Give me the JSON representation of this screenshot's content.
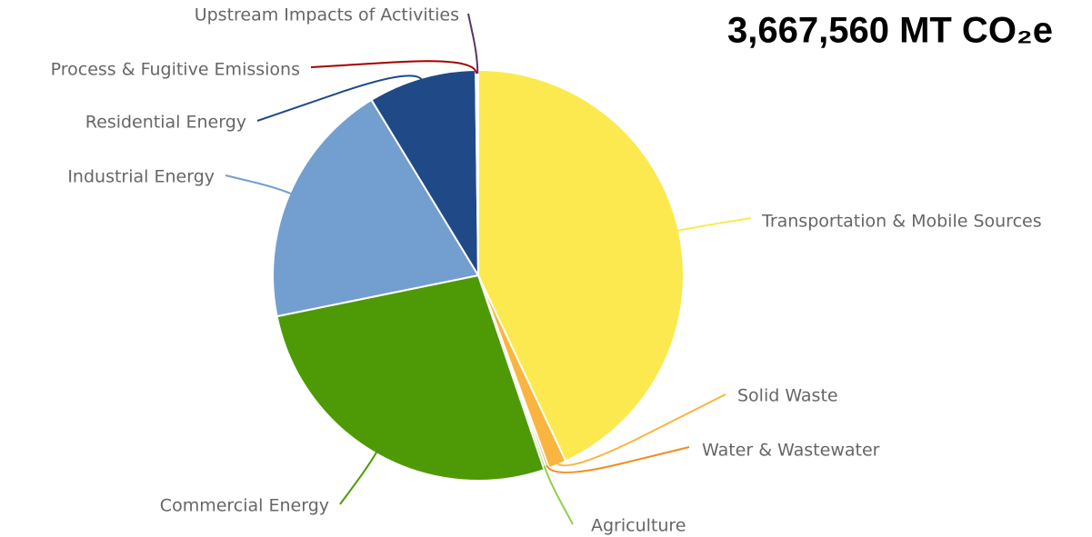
{
  "chart_data": {
    "type": "pie",
    "title": "3,667,560 MT CO₂e",
    "categories": [
      "Transportation & Mobile Sources",
      "Solid Waste",
      "Water & Wastewater",
      "Agriculture",
      "Commercial Energy",
      "Industrial Energy",
      "Residential Energy",
      "Process & Fugitive Emissions",
      "Upstream Impacts of Activities"
    ],
    "values": [
      43,
      1.4,
      0.2,
      0.2,
      27,
      19.5,
      8.5,
      0.1,
      0.1
    ],
    "colors": [
      "#fce94f",
      "#f9b53f",
      "#f28c1e",
      "#8ed14b",
      "#4e9a06",
      "#729fcf",
      "#204a87",
      "#a40000",
      "#5c3566"
    ]
  }
}
